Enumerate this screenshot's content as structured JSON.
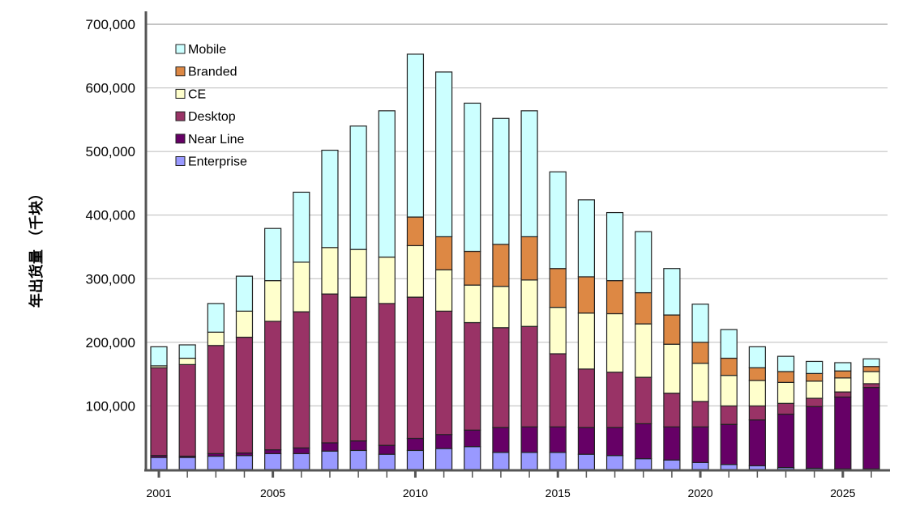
{
  "chart_data": {
    "type": "bar",
    "stacked": true,
    "title": "",
    "xlabel": "",
    "ylabel": "年出货量 （千块）",
    "ylim": [
      0,
      700000
    ],
    "yticks": [
      "100,000",
      "200,000",
      "300,000",
      "400,000",
      "500,000",
      "600,000",
      "700,000"
    ],
    "ytick_values": [
      100000,
      200000,
      300000,
      400000,
      500000,
      600000,
      700000
    ],
    "xtick_labels": [
      "2001",
      "2005",
      "2010",
      "2015",
      "2020",
      "2025"
    ],
    "categories": [
      "2001",
      "2002",
      "2003",
      "2004",
      "2005",
      "2006",
      "2007",
      "2008",
      "2009",
      "2010",
      "2011",
      "2012",
      "2013",
      "2014",
      "2015",
      "2016",
      "2017",
      "2018",
      "2019",
      "2020",
      "2021",
      "2022",
      "2023",
      "2024",
      "2025",
      "2026"
    ],
    "grid": true,
    "legend_position": "top-left",
    "legend": [
      "Mobile",
      "Branded",
      "CE",
      "Desktop",
      "Near Line",
      "Enterprise"
    ],
    "series": [
      {
        "name": "Enterprise",
        "color": "#9999FF",
        "values": [
          19000,
          19000,
          21000,
          22000,
          25000,
          25000,
          29000,
          30000,
          24000,
          30000,
          33000,
          36000,
          27000,
          27000,
          27000,
          24000,
          22000,
          17000,
          15000,
          11000,
          8000,
          6000,
          3000,
          2000,
          1000,
          1000
        ]
      },
      {
        "name": "Near Line",
        "color": "#660066",
        "values": [
          3000,
          2000,
          4000,
          4000,
          6000,
          9000,
          13000,
          15000,
          14000,
          19000,
          22000,
          26000,
          39000,
          40000,
          40000,
          42000,
          44000,
          55000,
          52000,
          56000,
          63000,
          72000,
          84000,
          97000,
          113000,
          128000
        ]
      },
      {
        "name": "Desktop",
        "color": "#993366",
        "values": [
          138000,
          144000,
          170000,
          182000,
          202000,
          214000,
          234000,
          226000,
          223000,
          222000,
          194000,
          169000,
          157000,
          158000,
          115000,
          92000,
          87000,
          73000,
          53000,
          40000,
          29000,
          22000,
          17000,
          13000,
          8000,
          6000
        ]
      },
      {
        "name": "CE",
        "color": "#FFFFCC",
        "values": [
          3000,
          10000,
          21000,
          41000,
          64000,
          78000,
          73000,
          75000,
          73000,
          81000,
          65000,
          59000,
          65000,
          73000,
          73000,
          88000,
          92000,
          84000,
          77000,
          60000,
          48000,
          40000,
          33000,
          27000,
          22000,
          19000
        ]
      },
      {
        "name": "Branded",
        "color": "#DD8844",
        "values": [
          0,
          0,
          0,
          0,
          0,
          0,
          0,
          0,
          0,
          45000,
          52000,
          53000,
          66000,
          68000,
          61000,
          57000,
          52000,
          49000,
          46000,
          33000,
          27000,
          20000,
          17000,
          12000,
          11000,
          8000
        ]
      },
      {
        "name": "Mobile",
        "color": "#CCFFFF",
        "values": [
          30000,
          21000,
          45000,
          55000,
          82000,
          110000,
          153000,
          194000,
          230000,
          256000,
          259000,
          233000,
          198000,
          198000,
          152000,
          121000,
          107000,
          96000,
          73000,
          60000,
          45000,
          33000,
          24000,
          19000,
          13000,
          12000
        ]
      }
    ]
  }
}
